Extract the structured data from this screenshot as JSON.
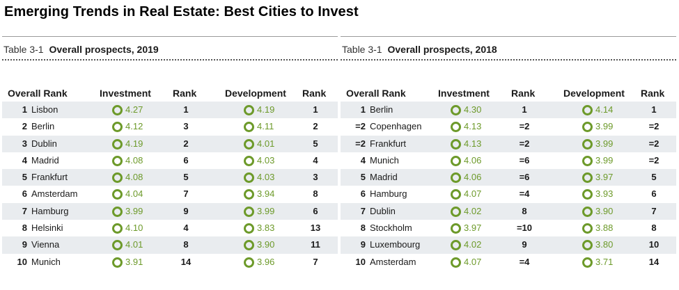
{
  "title": "Emerging Trends in Real Estate: Best Cities to Invest",
  "colors": {
    "accent": "#6d9a2a",
    "row_shade": "#e9ecef"
  },
  "tables": [
    {
      "table_number": "Table 3-1",
      "caption": "Overall prospects, 2019",
      "headers": {
        "overall_rank": "Overall Rank",
        "investment": "Investment",
        "rank1": "Rank",
        "development": "Development",
        "rank2": "Rank"
      },
      "rows": [
        {
          "rank": "1",
          "city": "Lisbon",
          "inv": "4.27",
          "inv_rank": "1",
          "dev": "4.19",
          "dev_rank": "1"
        },
        {
          "rank": "2",
          "city": "Berlin",
          "inv": "4.12",
          "inv_rank": "3",
          "dev": "4.11",
          "dev_rank": "2"
        },
        {
          "rank": "3",
          "city": "Dublin",
          "inv": "4.19",
          "inv_rank": "2",
          "dev": "4.01",
          "dev_rank": "5"
        },
        {
          "rank": "4",
          "city": "Madrid",
          "inv": "4.08",
          "inv_rank": "6",
          "dev": "4.03",
          "dev_rank": "4"
        },
        {
          "rank": "5",
          "city": "Frankfurt",
          "inv": "4.08",
          "inv_rank": "5",
          "dev": "4.03",
          "dev_rank": "3"
        },
        {
          "rank": "6",
          "city": "Amsterdam",
          "inv": "4.04",
          "inv_rank": "7",
          "dev": "3.94",
          "dev_rank": "8"
        },
        {
          "rank": "7",
          "city": "Hamburg",
          "inv": "3.99",
          "inv_rank": "9",
          "dev": "3.99",
          "dev_rank": "6"
        },
        {
          "rank": "8",
          "city": "Helsinki",
          "inv": "4.10",
          "inv_rank": "4",
          "dev": "3.83",
          "dev_rank": "13"
        },
        {
          "rank": "9",
          "city": "Vienna",
          "inv": "4.01",
          "inv_rank": "8",
          "dev": "3.90",
          "dev_rank": "11"
        },
        {
          "rank": "10",
          "city": "Munich",
          "inv": "3.91",
          "inv_rank": "14",
          "dev": "3.96",
          "dev_rank": "7"
        }
      ]
    },
    {
      "table_number": "Table 3-1",
      "caption": "Overall prospects, 2018",
      "headers": {
        "overall_rank": "Overall Rank",
        "investment": "Investment",
        "rank1": "Rank",
        "development": "Development",
        "rank2": "Rank"
      },
      "rows": [
        {
          "rank": "1",
          "city": "Berlin",
          "inv": "4.30",
          "inv_rank": "1",
          "dev": "4.14",
          "dev_rank": "1"
        },
        {
          "rank": "=2",
          "city": "Copenhagen",
          "inv": "4.13",
          "inv_rank": "=2",
          "dev": "3.99",
          "dev_rank": "=2"
        },
        {
          "rank": "=2",
          "city": "Frankfurt",
          "inv": "4.13",
          "inv_rank": "=2",
          "dev": "3.99",
          "dev_rank": "=2"
        },
        {
          "rank": "4",
          "city": "Munich",
          "inv": "4.06",
          "inv_rank": "=6",
          "dev": "3.99",
          "dev_rank": "=2"
        },
        {
          "rank": "5",
          "city": "Madrid",
          "inv": "4.06",
          "inv_rank": "=6",
          "dev": "3.97",
          "dev_rank": "5"
        },
        {
          "rank": "6",
          "city": "Hamburg",
          "inv": "4.07",
          "inv_rank": "=4",
          "dev": "3.93",
          "dev_rank": "6"
        },
        {
          "rank": "7",
          "city": "Dublin",
          "inv": "4.02",
          "inv_rank": "8",
          "dev": "3.90",
          "dev_rank": "7"
        },
        {
          "rank": "8",
          "city": "Stockholm",
          "inv": "3.97",
          "inv_rank": "=10",
          "dev": "3.88",
          "dev_rank": "8"
        },
        {
          "rank": "9",
          "city": "Luxembourg",
          "inv": "4.02",
          "inv_rank": "9",
          "dev": "3.80",
          "dev_rank": "10"
        },
        {
          "rank": "10",
          "city": "Amsterdam",
          "inv": "4.07",
          "inv_rank": "=4",
          "dev": "3.71",
          "dev_rank": "14"
        }
      ]
    }
  ]
}
